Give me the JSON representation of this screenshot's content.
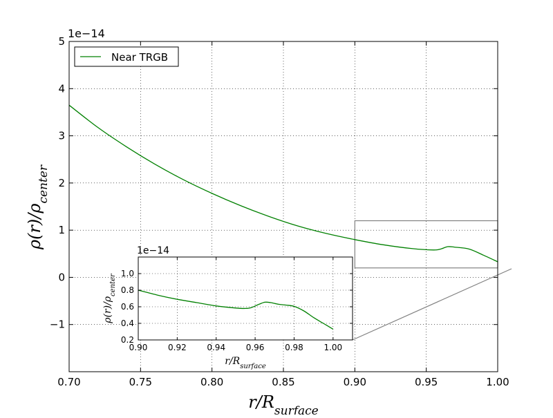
{
  "chart_data": [
    {
      "type": "line",
      "role": "main",
      "xlabel": "r/R_surface",
      "ylabel": "ρ(r)/ρ_center",
      "offset_label": "1e−14",
      "xlim": [
        0.7,
        1.0
      ],
      "ylim": [
        -2,
        5
      ],
      "x_ticks": [
        0.7,
        0.75,
        0.8,
        0.85,
        0.9,
        0.95,
        1.0
      ],
      "x_tick_labels": [
        "0.70",
        "0.75",
        "0.80",
        "0.85",
        "0.90",
        "0.95",
        "1.00"
      ],
      "y_ticks": [
        -1,
        0,
        1,
        2,
        3,
        4,
        5
      ],
      "y_tick_labels": [
        "−1",
        "0",
        "1",
        "2",
        "3",
        "4",
        "5"
      ],
      "grid": true,
      "legend_position": "top-left",
      "series": [
        {
          "name": "Near TRGB",
          "color": "#008000",
          "x": [
            0.7,
            0.72,
            0.74,
            0.76,
            0.78,
            0.8,
            0.82,
            0.84,
            0.86,
            0.88,
            0.9,
            0.92,
            0.94,
            0.955,
            0.96,
            0.965,
            0.97,
            0.98,
            0.99,
            1.0
          ],
          "y": [
            3.65,
            3.18,
            2.77,
            2.4,
            2.07,
            1.78,
            1.52,
            1.29,
            1.09,
            0.93,
            0.8,
            0.69,
            0.61,
            0.58,
            0.6,
            0.65,
            0.64,
            0.6,
            0.47,
            0.33
          ]
        }
      ],
      "zoom_box": {
        "x": [
          0.9,
          1.0
        ],
        "y": [
          0.2,
          1.2
        ],
        "color": "#808080"
      }
    },
    {
      "type": "line",
      "role": "inset",
      "xlabel": "r/R_surface",
      "ylabel": "ρ(r)/ρ_center",
      "offset_label": "1e−14",
      "xlim": [
        0.9,
        1.01
      ],
      "ylim": [
        0.2,
        1.2
      ],
      "x_ticks": [
        0.9,
        0.92,
        0.94,
        0.96,
        0.98,
        1.0
      ],
      "x_tick_labels": [
        "0.90",
        "0.92",
        "0.94",
        "0.96",
        "0.98",
        "1.00"
      ],
      "y_ticks": [
        0.2,
        0.4,
        0.6,
        0.8,
        1.0
      ],
      "y_tick_labels": [
        "0.2",
        "0.4",
        "0.6",
        "0.8",
        "1.0"
      ],
      "grid": true,
      "series": [
        {
          "color": "#008000",
          "x": [
            0.9,
            0.91,
            0.92,
            0.93,
            0.94,
            0.95,
            0.955,
            0.958,
            0.962,
            0.965,
            0.968,
            0.972,
            0.976,
            0.98,
            0.985,
            0.99,
            0.995,
            1.0
          ],
          "y": [
            0.8,
            0.74,
            0.69,
            0.65,
            0.61,
            0.585,
            0.58,
            0.59,
            0.63,
            0.655,
            0.65,
            0.63,
            0.62,
            0.605,
            0.55,
            0.47,
            0.4,
            0.33
          ]
        }
      ]
    }
  ]
}
